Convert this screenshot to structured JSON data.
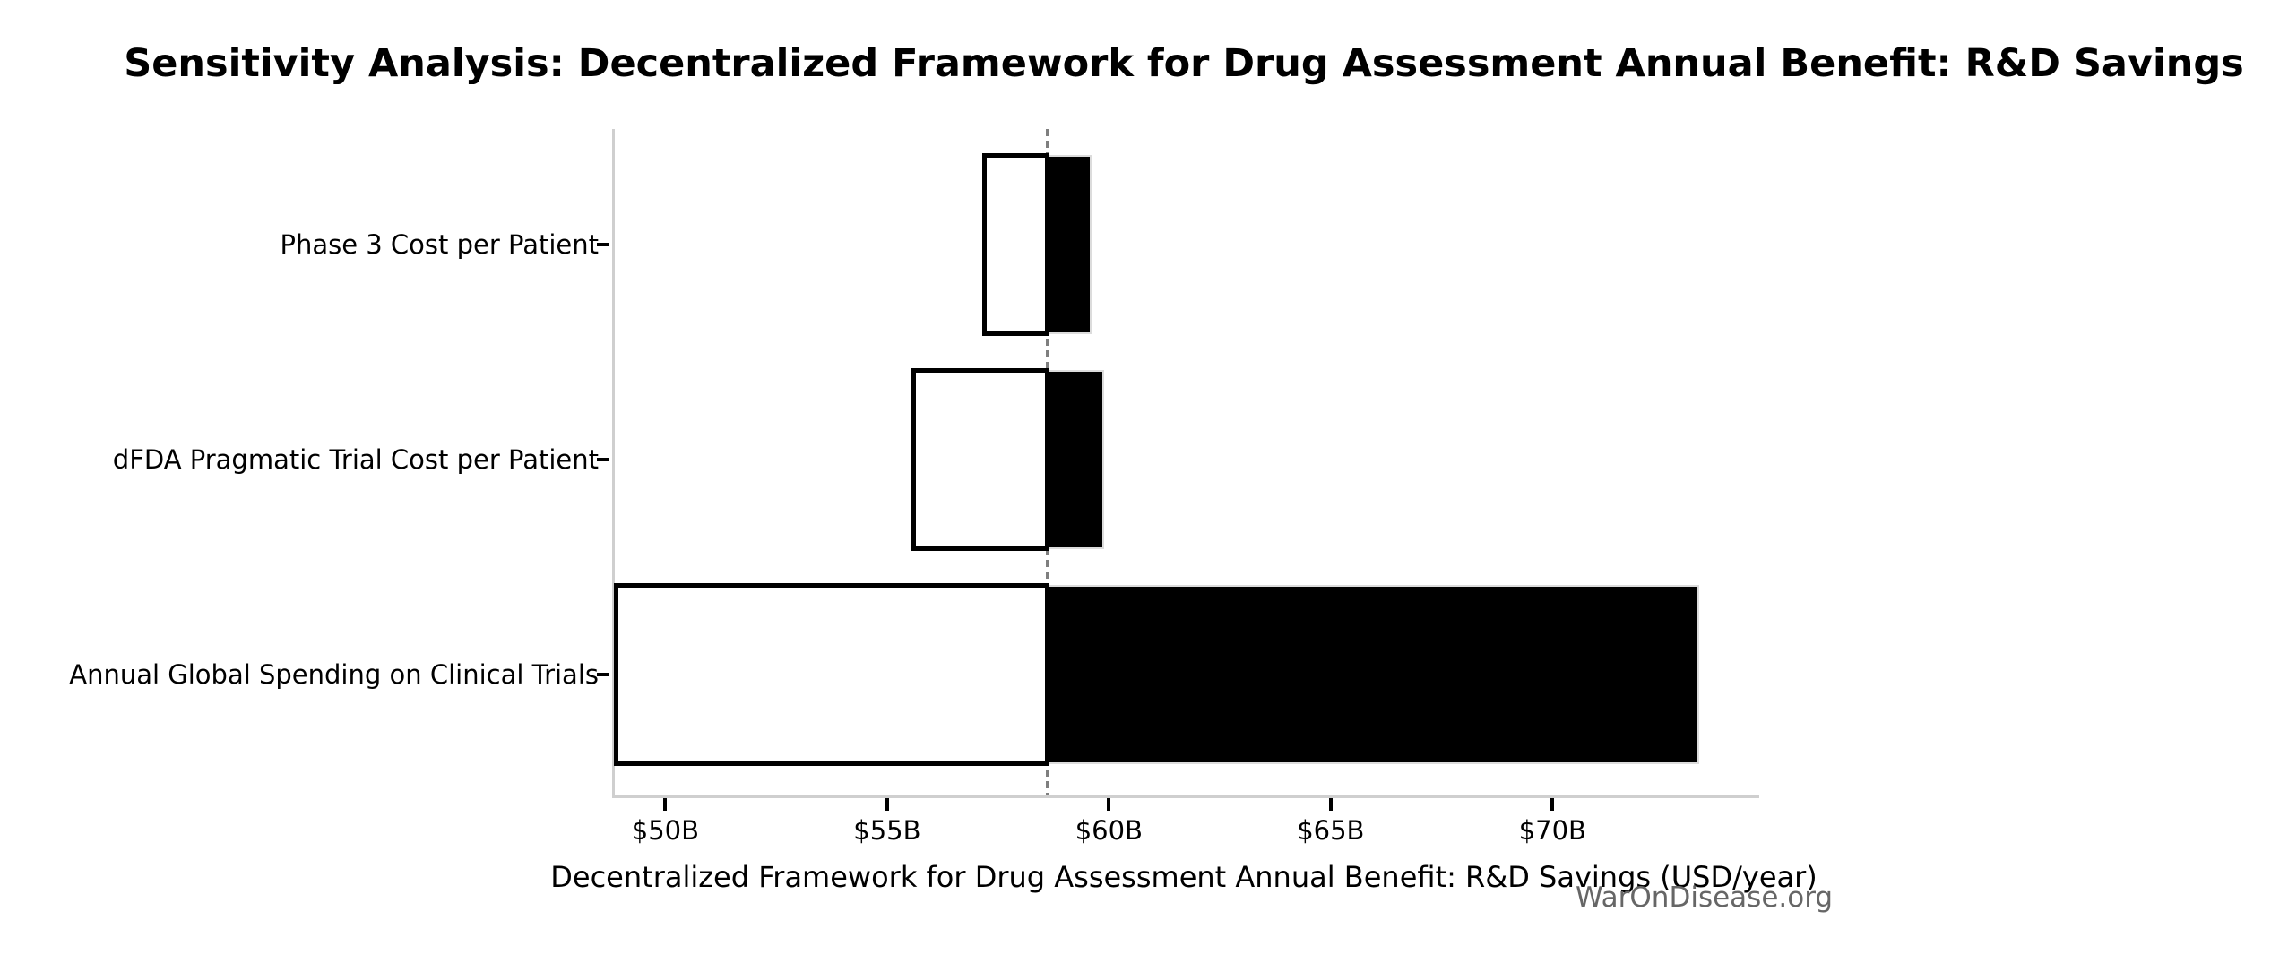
{
  "watermark": "WarOnDisease.org",
  "chart_data": {
    "type": "bar",
    "subtype": "tornado-sensitivity",
    "orientation": "horizontal",
    "title": "Sensitivity Analysis: Decentralized Framework for Drug Assessment Annual Benefit: R&D Savings",
    "xlabel": "Decentralized Framework for Drug Assessment Annual Benefit: R&D Savings (USD/year)",
    "ylabel": "",
    "categories": [
      "Phase 3 Cost per Patient",
      "dFDA Pragmatic Trial Cost per Patient",
      "Annual Global Spending on Clinical Trials"
    ],
    "series": [
      {
        "name": "low-case (white bar, left of baseline)",
        "values": [
          57.2,
          55.6,
          48.9
        ]
      },
      {
        "name": "high-case (black bar, right of baseline)",
        "values": [
          59.6,
          59.9,
          73.3
        ]
      }
    ],
    "baseline": 58.6,
    "xlim": [
      48.8,
      74.6
    ],
    "xticks": [
      50,
      55,
      60,
      65,
      70
    ],
    "xtick_labels": [
      "$50B",
      "$55B",
      "$60B",
      "$65B",
      "$70B"
    ],
    "grid": false,
    "legend": "none",
    "colors": {
      "low_fill": "#ffffff",
      "low_edge": "#000000",
      "high_fill": "#000000",
      "baseline_line": "#7f7f7f",
      "spine": "#cfcfcf",
      "tick": "#000000",
      "text": "#000000",
      "watermark": "#666666"
    }
  }
}
